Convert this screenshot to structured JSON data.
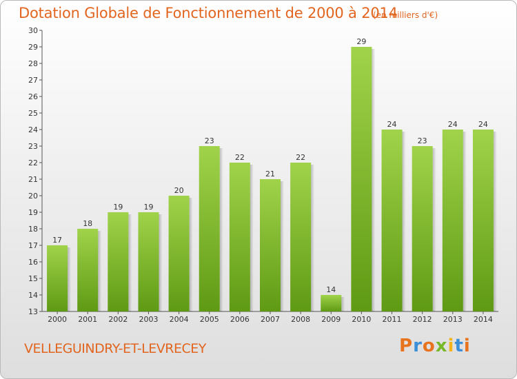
{
  "title": "Dotation Globale de Fonctionnement de 2000 à 2014",
  "subtitle": "(en milliers d'€)",
  "commune": "VELLEGUINDRY-ET-LEVRECEY",
  "logo": "Proxiti",
  "colors": {
    "bar_top": "#a0d34a",
    "bar_bottom": "#5f9a14",
    "title": "#e2651f"
  },
  "chart_data": {
    "type": "bar",
    "categories": [
      "2000",
      "2001",
      "2002",
      "2003",
      "2004",
      "2005",
      "2006",
      "2007",
      "2008",
      "2009",
      "2010",
      "2011",
      "2012",
      "2013",
      "2014"
    ],
    "values": [
      17,
      18,
      19,
      19,
      20,
      23,
      22,
      21,
      22,
      14,
      29,
      24,
      23,
      24,
      24
    ],
    "title": "Dotation Globale de Fonctionnement de 2000 à 2014",
    "ylim": [
      13,
      30
    ],
    "yticks": [
      13,
      14,
      15,
      16,
      17,
      18,
      19,
      20,
      21,
      22,
      23,
      24,
      25,
      26,
      27,
      28,
      29,
      30
    ],
    "grid": false,
    "legend": "none"
  }
}
